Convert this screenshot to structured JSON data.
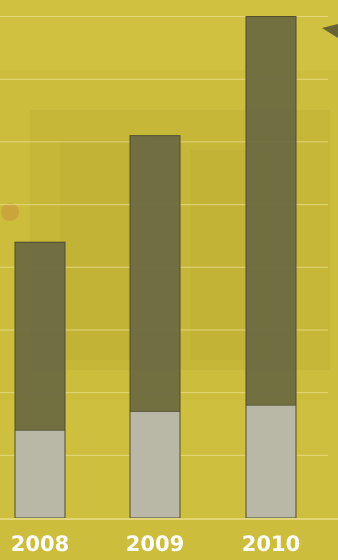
{
  "colors": {
    "background": "#cdbd3c",
    "bar_total": "#6b6842",
    "bar_lower": "#b9b8a6",
    "gridline": "#e7dc86",
    "tick_text": "#ffffff"
  },
  "chart_data": {
    "type": "bar",
    "stacked": true,
    "categories": [
      "2008",
      "2009",
      "2010"
    ],
    "series": [
      {
        "values": [
          1.4,
          1.7,
          1.8
        ]
      },
      {
        "values": [
          3.0,
          4.4,
          6.2
        ]
      }
    ],
    "totals": [
      4.4,
      6.1,
      8.0
    ],
    "ylim": [
      0,
      8.2
    ],
    "grid": true,
    "gridline_values": [
      1,
      2,
      3,
      4,
      5,
      6,
      7,
      8
    ],
    "legend": "none",
    "title": "",
    "xlabel": "",
    "ylabel": ""
  }
}
